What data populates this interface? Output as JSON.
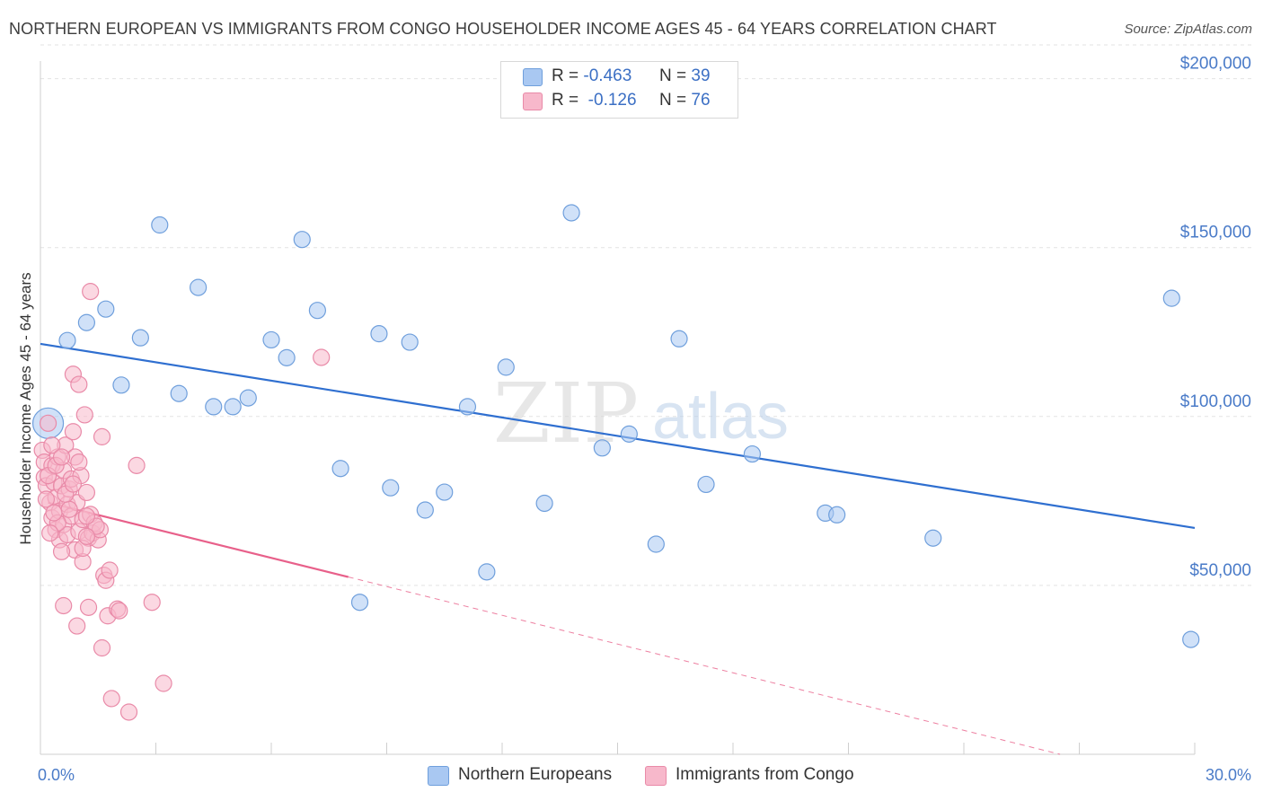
{
  "header": {
    "title": "NORTHERN EUROPEAN VS IMMIGRANTS FROM CONGO HOUSEHOLDER INCOME AGES 45 - 64 YEARS CORRELATION CHART",
    "source": "Source: ZipAtlas.com"
  },
  "legend_top": {
    "rows": [
      {
        "r_label": "R =",
        "r_value": "-0.463",
        "n_label": "N =",
        "n_value": "39",
        "color": "#a9c8f2"
      },
      {
        "r_label": "R =",
        "r_value": "-0.126",
        "n_label": "N =",
        "n_value": "76",
        "color": "#f7b8cb"
      }
    ]
  },
  "watermark": {
    "zip": "ZIP",
    "atlas": "atlas"
  },
  "chart_data": {
    "type": "scatter",
    "title": "NORTHERN EUROPEAN VS IMMIGRANTS FROM CONGO HOUSEHOLDER INCOME AGES 45 - 64 YEARS CORRELATION CHART",
    "xlabel": "",
    "ylabel": "Householder Income Ages 45 - 64 years",
    "xlim": [
      0,
      30
    ],
    "ylim": [
      0,
      210000
    ],
    "x_tick_labels": [
      "0.0%",
      "30.0%"
    ],
    "y_ticks": [
      50000,
      100000,
      150000,
      200000
    ],
    "y_tick_labels": [
      "$50,000",
      "$100,000",
      "$150,000",
      "$200,000"
    ],
    "grid": true,
    "legend_position": "bottom",
    "series": [
      {
        "name": "Northern Europeans",
        "color": "#a9c8f2",
        "stroke": "#6f9fdc",
        "trend_color": "#2f6fd0",
        "trend": {
          "x": [
            0,
            30
          ],
          "y": [
            121500,
            67000
          ]
        },
        "points": [
          {
            "x": 0.2,
            "y": 98000,
            "big": true
          },
          {
            "x": 0.7,
            "y": 122500
          },
          {
            "x": 1.2,
            "y": 127800
          },
          {
            "x": 1.7,
            "y": 131800
          },
          {
            "x": 2.1,
            "y": 109300
          },
          {
            "x": 2.6,
            "y": 123300
          },
          {
            "x": 3.1,
            "y": 156700
          },
          {
            "x": 3.6,
            "y": 106800
          },
          {
            "x": 4.1,
            "y": 138200
          },
          {
            "x": 4.5,
            "y": 102900
          },
          {
            "x": 5.0,
            "y": 102900
          },
          {
            "x": 5.4,
            "y": 105500
          },
          {
            "x": 6.0,
            "y": 122700
          },
          {
            "x": 6.4,
            "y": 117400
          },
          {
            "x": 6.8,
            "y": 152400
          },
          {
            "x": 7.2,
            "y": 131400
          },
          {
            "x": 7.8,
            "y": 84600
          },
          {
            "x": 8.8,
            "y": 124500
          },
          {
            "x": 9.1,
            "y": 78900
          },
          {
            "x": 9.6,
            "y": 122000
          },
          {
            "x": 10.0,
            "y": 72300
          },
          {
            "x": 10.5,
            "y": 77600
          },
          {
            "x": 11.1,
            "y": 102900
          },
          {
            "x": 11.6,
            "y": 54000
          },
          {
            "x": 12.1,
            "y": 114600
          },
          {
            "x": 13.8,
            "y": 160300
          },
          {
            "x": 14.6,
            "y": 90700
          },
          {
            "x": 15.3,
            "y": 94800
          },
          {
            "x": 16.0,
            "y": 62200
          },
          {
            "x": 16.6,
            "y": 123000
          },
          {
            "x": 17.3,
            "y": 79900
          },
          {
            "x": 18.5,
            "y": 88900
          },
          {
            "x": 20.4,
            "y": 71400
          },
          {
            "x": 20.7,
            "y": 70900
          },
          {
            "x": 23.2,
            "y": 64000
          },
          {
            "x": 8.3,
            "y": 45000
          },
          {
            "x": 13.1,
            "y": 74300
          },
          {
            "x": 29.4,
            "y": 135000
          },
          {
            "x": 29.9,
            "y": 34000
          }
        ]
      },
      {
        "name": "Immigrants from Congo",
        "color": "#f7b8cb",
        "stroke": "#e98aa8",
        "trend_color": "#e8608a",
        "trend": {
          "x": [
            0.2,
            8.0
          ],
          "y": [
            74500,
            52500
          ]
        },
        "trend_dashed": {
          "x": [
            8.0,
            26.5
          ],
          "y": [
            52500,
            0
          ]
        },
        "points": [
          {
            "x": 0.05,
            "y": 90000
          },
          {
            "x": 0.1,
            "y": 86500
          },
          {
            "x": 0.1,
            "y": 82000
          },
          {
            "x": 0.15,
            "y": 79500
          },
          {
            "x": 0.2,
            "y": 98000
          },
          {
            "x": 0.25,
            "y": 74500
          },
          {
            "x": 0.3,
            "y": 70000
          },
          {
            "x": 0.3,
            "y": 85500
          },
          {
            "x": 0.35,
            "y": 80500
          },
          {
            "x": 0.4,
            "y": 66500
          },
          {
            "x": 0.4,
            "y": 76000
          },
          {
            "x": 0.45,
            "y": 88000
          },
          {
            "x": 0.5,
            "y": 72000
          },
          {
            "x": 0.5,
            "y": 63500
          },
          {
            "x": 0.55,
            "y": 79500
          },
          {
            "x": 0.6,
            "y": 68000
          },
          {
            "x": 0.6,
            "y": 84000
          },
          {
            "x": 0.65,
            "y": 91500
          },
          {
            "x": 0.7,
            "y": 74000
          },
          {
            "x": 0.7,
            "y": 65000
          },
          {
            "x": 0.75,
            "y": 78500
          },
          {
            "x": 0.8,
            "y": 70500
          },
          {
            "x": 0.8,
            "y": 81500
          },
          {
            "x": 0.85,
            "y": 112500
          },
          {
            "x": 0.85,
            "y": 95500
          },
          {
            "x": 0.9,
            "y": 88000
          },
          {
            "x": 0.9,
            "y": 60500
          },
          {
            "x": 0.95,
            "y": 74500
          },
          {
            "x": 1.0,
            "y": 109500
          },
          {
            "x": 1.0,
            "y": 66000
          },
          {
            "x": 1.05,
            "y": 82500
          },
          {
            "x": 1.1,
            "y": 57000
          },
          {
            "x": 1.1,
            "y": 69500
          },
          {
            "x": 1.15,
            "y": 100500
          },
          {
            "x": 1.2,
            "y": 77500
          },
          {
            "x": 1.25,
            "y": 64000
          },
          {
            "x": 1.3,
            "y": 137000
          },
          {
            "x": 1.3,
            "y": 71000
          },
          {
            "x": 1.35,
            "y": 65500
          },
          {
            "x": 1.4,
            "y": 68500
          },
          {
            "x": 1.5,
            "y": 63500
          },
          {
            "x": 1.55,
            "y": 66500
          },
          {
            "x": 1.6,
            "y": 94000
          },
          {
            "x": 1.65,
            "y": 53000
          },
          {
            "x": 1.7,
            "y": 51500
          },
          {
            "x": 1.75,
            "y": 41000
          },
          {
            "x": 1.8,
            "y": 54500
          },
          {
            "x": 1.85,
            "y": 16500
          },
          {
            "x": 1.6,
            "y": 31500
          },
          {
            "x": 2.0,
            "y": 43000
          },
          {
            "x": 2.05,
            "y": 42500
          },
          {
            "x": 2.5,
            "y": 85500
          },
          {
            "x": 2.9,
            "y": 45000
          },
          {
            "x": 3.2,
            "y": 21000
          },
          {
            "x": 2.3,
            "y": 12500
          },
          {
            "x": 7.3,
            "y": 117500
          },
          {
            "x": 0.95,
            "y": 38000
          },
          {
            "x": 1.25,
            "y": 43500
          },
          {
            "x": 0.6,
            "y": 44000
          },
          {
            "x": 0.2,
            "y": 82500
          },
          {
            "x": 0.3,
            "y": 91500
          },
          {
            "x": 0.45,
            "y": 68500
          },
          {
            "x": 0.55,
            "y": 60000
          },
          {
            "x": 0.75,
            "y": 72500
          },
          {
            "x": 1.1,
            "y": 61000
          },
          {
            "x": 0.4,
            "y": 85500
          },
          {
            "x": 0.65,
            "y": 77000
          },
          {
            "x": 0.85,
            "y": 80000
          },
          {
            "x": 1.45,
            "y": 67500
          },
          {
            "x": 1.2,
            "y": 64500
          },
          {
            "x": 0.15,
            "y": 75500
          },
          {
            "x": 0.35,
            "y": 71500
          },
          {
            "x": 1.0,
            "y": 86500
          },
          {
            "x": 1.2,
            "y": 70500
          },
          {
            "x": 0.55,
            "y": 88000
          },
          {
            "x": 0.25,
            "y": 65500
          }
        ]
      }
    ]
  }
}
